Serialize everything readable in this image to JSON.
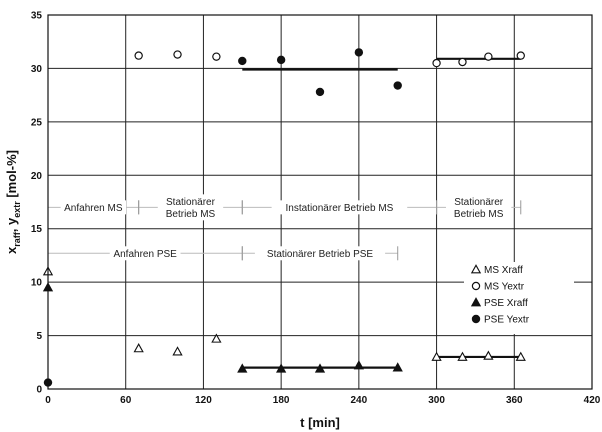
{
  "chart_data": {
    "type": "scatter",
    "xlabel": "t [min]",
    "ylabel_parts": {
      "base1": "x",
      "sub1": "raff",
      "sep": ", ",
      "base2": "y",
      "sub2": "extr",
      "unit": " [mol-%]"
    },
    "xlim": [
      0,
      420
    ],
    "ylim": [
      0,
      35
    ],
    "xticks": [
      0,
      60,
      120,
      180,
      240,
      300,
      360,
      420
    ],
    "yticks": [
      0,
      5,
      10,
      15,
      20,
      25,
      30,
      35
    ],
    "grid": true,
    "legend_position": "right",
    "series": [
      {
        "name": "MS Xraff",
        "marker": "triangle-open",
        "points": [
          [
            0,
            11.0
          ],
          [
            70,
            3.8
          ],
          [
            100,
            3.5
          ],
          [
            130,
            4.7
          ],
          [
            300,
            3.0
          ],
          [
            320,
            3.0
          ],
          [
            340,
            3.1
          ],
          [
            365,
            3.0
          ]
        ]
      },
      {
        "name": "MS Yextr",
        "marker": "circle-open",
        "points": [
          [
            70,
            31.2
          ],
          [
            100,
            31.3
          ],
          [
            130,
            31.1
          ],
          [
            300,
            30.5
          ],
          [
            320,
            30.6
          ],
          [
            340,
            31.1
          ],
          [
            365,
            31.2
          ]
        ]
      },
      {
        "name": "PSE Xraff",
        "marker": "triangle-filled",
        "points": [
          [
            0,
            9.5
          ],
          [
            150,
            1.9
          ],
          [
            180,
            1.9
          ],
          [
            210,
            1.9
          ],
          [
            240,
            2.2
          ],
          [
            270,
            2.0
          ]
        ]
      },
      {
        "name": "PSE Yextr",
        "marker": "circle-filled",
        "points": [
          [
            0,
            0.6
          ],
          [
            150,
            30.7
          ],
          [
            180,
            30.8
          ],
          [
            210,
            27.8
          ],
          [
            240,
            31.5
          ],
          [
            270,
            28.4
          ]
        ]
      }
    ],
    "trend_lines": [
      {
        "x": [
          150,
          270
        ],
        "y": [
          29.9,
          29.9
        ]
      },
      {
        "x": [
          300,
          365
        ],
        "y": [
          30.9,
          30.9
        ]
      },
      {
        "x": [
          150,
          270
        ],
        "y": [
          2.0,
          2.0
        ]
      },
      {
        "x": [
          300,
          365
        ],
        "y": [
          3.0,
          3.0
        ]
      }
    ],
    "phases": [
      {
        "label": "Anfahren MS",
        "x1": 0,
        "x2": 70,
        "y": 17
      },
      {
        "label": "Stationärer\nBetrieb MS",
        "x1": 70,
        "x2": 150,
        "y": 17
      },
      {
        "label": "Instationärer Betrieb MS",
        "x1": 150,
        "x2": 300,
        "y": 17
      },
      {
        "label": "Stationärer\nBetrieb MS",
        "x1": 300,
        "x2": 365,
        "y": 17
      },
      {
        "label": "Anfahren PSE",
        "x1": 0,
        "x2": 150,
        "y": 12.7
      },
      {
        "label": "Stationärer Betrieb PSE",
        "x1": 150,
        "x2": 270,
        "y": 12.7
      }
    ]
  }
}
